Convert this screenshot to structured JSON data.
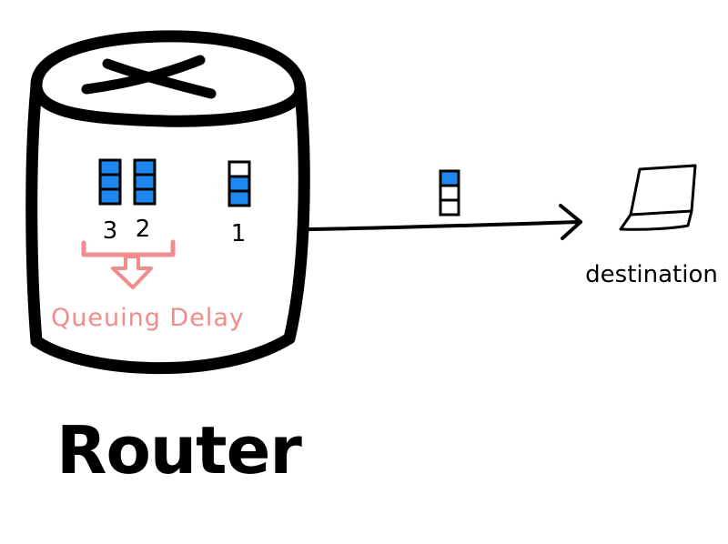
{
  "router": {
    "label": "Router"
  },
  "queue": {
    "packets": [
      {
        "label": "3",
        "cells": [
          "blue",
          "blue",
          "blue"
        ]
      },
      {
        "label": "2",
        "cells": [
          "blue",
          "blue",
          "blue"
        ]
      },
      {
        "label": "1",
        "cells": [
          "white",
          "blue",
          "blue"
        ]
      }
    ],
    "delay_label": "Queuing Delay"
  },
  "in_transit_packet": {
    "cells": [
      "blue",
      "white",
      "white"
    ]
  },
  "destination": {
    "label": "destination",
    "icon": "laptop-icon"
  },
  "colors": {
    "ink": "#000000",
    "packet_blue": "#1e88f0",
    "delay_pink": "#f08c8c"
  }
}
